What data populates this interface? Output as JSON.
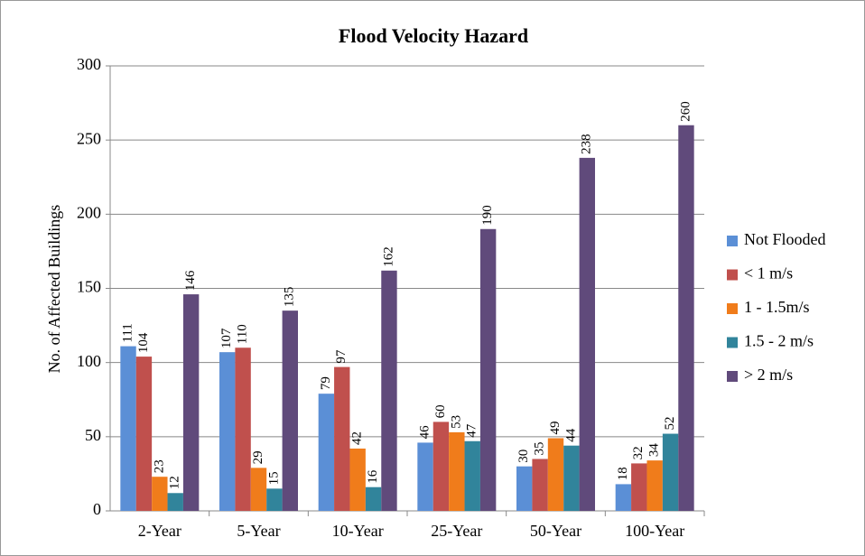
{
  "chart_data": {
    "type": "bar",
    "title": "Flood Velocity Hazard",
    "y_label": "No. of Affected  Buildings",
    "categories": [
      "2-Year",
      "5-Year",
      "10-Year",
      "25-Year",
      "50-Year",
      "100-Year"
    ],
    "series": [
      {
        "name": "Not Flooded",
        "color": "#5b8fd6",
        "values": [
          111,
          107,
          79,
          46,
          30,
          18
        ]
      },
      {
        "name": "< 1 m/s",
        "color": "#c0504d",
        "values": [
          104,
          110,
          97,
          60,
          35,
          32
        ]
      },
      {
        "name": "1 - 1.5m/s",
        "color": "#f07c1b",
        "values": [
          23,
          29,
          42,
          53,
          49,
          34
        ]
      },
      {
        "name": "1.5 - 2 m/s",
        "color": "#31849b",
        "values": [
          12,
          15,
          16,
          47,
          44,
          52
        ]
      },
      {
        "name": "> 2 m/s",
        "color": "#604a7b",
        "values": [
          146,
          135,
          162,
          190,
          238,
          260
        ]
      }
    ],
    "ylim": [
      0,
      300
    ],
    "yticks": [
      0,
      50,
      100,
      150,
      200,
      250,
      300
    ],
    "grid": true,
    "legend": "right"
  }
}
